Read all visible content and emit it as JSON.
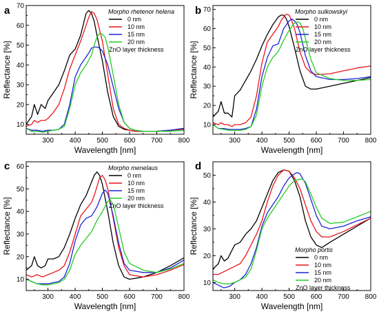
{
  "x_axis_label": "Wavelength [nm]",
  "y_axis_label": "Reflectance [%]",
  "legend_title": "ZnO layer thickness",
  "series_colors": {
    "0 nm": "#000000",
    "10 nm": "#e8141a",
    "15 nm": "#1f22d6",
    "20 nm": "#22cc22"
  },
  "chart_data": [
    {
      "panel": "a",
      "title": "Morpho rhetenor helena",
      "type": "line",
      "xlabel": "Wavelength [nm]",
      "ylabel": "Reflectance [%]",
      "xlim": [
        220,
        800
      ],
      "ylim": [
        5,
        70
      ],
      "xticks": [
        300,
        400,
        500,
        600,
        700,
        800
      ],
      "yticks": [
        10,
        20,
        30,
        40,
        50,
        60,
        70
      ],
      "legend_position": "top-right",
      "series": [
        {
          "name": "0 nm",
          "x": [
            220,
            240,
            250,
            262,
            275,
            290,
            300,
            320,
            340,
            360,
            380,
            400,
            420,
            440,
            450,
            460,
            470,
            480,
            500,
            520,
            540,
            560,
            580,
            600,
            620,
            650,
            700,
            750,
            800
          ],
          "y": [
            10,
            14,
            20,
            15,
            20,
            18,
            22,
            26,
            30,
            37,
            45,
            48,
            55,
            66,
            67.5,
            66,
            62,
            55,
            42,
            26,
            14,
            9,
            7.5,
            7,
            6.5,
            6.5,
            6.5,
            7,
            8
          ]
        },
        {
          "name": "10 nm",
          "x": [
            220,
            240,
            250,
            262,
            275,
            290,
            300,
            320,
            340,
            360,
            380,
            400,
            420,
            440,
            450,
            460,
            470,
            480,
            500,
            520,
            540,
            560,
            580,
            600,
            620,
            650,
            700,
            750,
            800
          ],
          "y": [
            9,
            10,
            12,
            11,
            12,
            12,
            13,
            16,
            20,
            28,
            38,
            45,
            52,
            60,
            64,
            67,
            66,
            63,
            52,
            35,
            18,
            10,
            8,
            7,
            6.5,
            6.5,
            6.5,
            7,
            7.5
          ]
        },
        {
          "name": "15 nm",
          "x": [
            220,
            240,
            260,
            280,
            300,
            320,
            340,
            360,
            380,
            400,
            420,
            440,
            450,
            460,
            470,
            480,
            490,
            500,
            520,
            540,
            560,
            580,
            600,
            620,
            650,
            700,
            750,
            800
          ],
          "y": [
            8,
            7,
            7,
            6.5,
            7,
            7,
            7.5,
            10,
            20,
            34,
            40,
            44,
            46,
            48.5,
            49,
            49,
            48.5,
            47,
            40,
            29,
            18,
            11,
            8,
            7,
            6.5,
            6.5,
            7,
            8
          ]
        },
        {
          "name": "20 nm",
          "x": [
            220,
            240,
            260,
            280,
            300,
            320,
            340,
            360,
            380,
            400,
            420,
            440,
            460,
            470,
            480,
            490,
            500,
            510,
            520,
            540,
            560,
            580,
            600,
            620,
            650,
            700,
            750,
            800
          ],
          "y": [
            8,
            6.5,
            6.5,
            6,
            6.5,
            7,
            7.5,
            9,
            18,
            30,
            36,
            40,
            45,
            50,
            54,
            56,
            55.5,
            54,
            49,
            35,
            20,
            11,
            8,
            7,
            6.5,
            6.5,
            6.5,
            7
          ]
        }
      ]
    },
    {
      "panel": "b",
      "title": "Morpho sulkowskyi",
      "type": "line",
      "xlabel": "Wavelength [nm]",
      "ylabel": "Reflectance [%]",
      "xlim": [
        220,
        800
      ],
      "ylim": [
        5,
        72
      ],
      "xticks": [
        300,
        400,
        500,
        600,
        700,
        800
      ],
      "yticks": [
        10,
        20,
        30,
        40,
        50,
        60,
        70
      ],
      "legend_position": "top-right",
      "series": [
        {
          "name": "0 nm",
          "x": [
            220,
            240,
            250,
            262,
            275,
            290,
            300,
            320,
            340,
            360,
            380,
            400,
            420,
            440,
            460,
            470,
            480,
            490,
            500,
            520,
            540,
            560,
            580,
            600,
            650,
            700,
            750,
            800
          ],
          "y": [
            14,
            17,
            22,
            16,
            16,
            14,
            25,
            28,
            33,
            38,
            44,
            51,
            57,
            62,
            66,
            67,
            67,
            65,
            61,
            50,
            38,
            30,
            28.5,
            28.5,
            30,
            31.5,
            33,
            34.5
          ]
        },
        {
          "name": "10 nm",
          "x": [
            220,
            240,
            250,
            262,
            275,
            290,
            300,
            320,
            340,
            360,
            380,
            400,
            420,
            440,
            460,
            470,
            480,
            490,
            500,
            510,
            520,
            540,
            560,
            580,
            600,
            650,
            700,
            750,
            800
          ],
          "y": [
            11,
            10,
            11,
            10,
            10,
            9,
            10,
            10,
            11,
            14,
            25,
            42,
            53,
            57,
            61,
            64,
            66,
            67.5,
            67,
            64,
            60,
            48,
            40,
            37,
            36,
            36.5,
            38,
            39.5,
            40.5
          ]
        },
        {
          "name": "15 nm",
          "x": [
            220,
            240,
            260,
            280,
            300,
            320,
            340,
            360,
            380,
            400,
            420,
            440,
            460,
            480,
            500,
            510,
            520,
            530,
            540,
            560,
            580,
            600,
            650,
            700,
            750,
            800
          ],
          "y": [
            10,
            8,
            8,
            7.5,
            7.5,
            7.5,
            8,
            9,
            18,
            35,
            45,
            51,
            52,
            60,
            64,
            65,
            64,
            62,
            58,
            46,
            38,
            35,
            33.5,
            33.5,
            34,
            35
          ]
        },
        {
          "name": "20 nm",
          "x": [
            220,
            240,
            260,
            280,
            300,
            320,
            340,
            360,
            380,
            400,
            420,
            440,
            460,
            480,
            500,
            520,
            530,
            540,
            550,
            560,
            580,
            600,
            650,
            700,
            750,
            800
          ],
          "y": [
            10,
            8,
            7.5,
            7,
            7,
            7,
            7.5,
            9,
            15,
            30,
            40,
            45,
            48,
            54,
            59,
            63,
            63.5,
            63,
            60,
            55,
            44,
            37,
            34,
            33,
            33,
            33.5
          ]
        }
      ]
    },
    {
      "panel": "c",
      "title": "Morpho menelaus",
      "type": "line",
      "xlabel": "Wavelength [nm]",
      "ylabel": "Reflectance [%]",
      "xlim": [
        220,
        800
      ],
      "ylim": [
        5,
        62
      ],
      "xticks": [
        300,
        400,
        500,
        600,
        700,
        800
      ],
      "yticks": [
        10,
        20,
        30,
        40,
        50,
        60
      ],
      "legend_position": "top-right",
      "series": [
        {
          "name": "0 nm",
          "x": [
            220,
            240,
            250,
            262,
            275,
            290,
            300,
            320,
            340,
            360,
            380,
            400,
            420,
            440,
            460,
            470,
            480,
            490,
            500,
            520,
            540,
            560,
            580,
            600,
            650,
            700,
            750,
            800
          ],
          "y": [
            14,
            16,
            20,
            16,
            15,
            16,
            19,
            19,
            20,
            24,
            30,
            37,
            43,
            47,
            53,
            56,
            57.5,
            56,
            52,
            40,
            26,
            16,
            11,
            10,
            11,
            13,
            16,
            19.5
          ]
        },
        {
          "name": "10 nm",
          "x": [
            220,
            240,
            260,
            280,
            300,
            320,
            340,
            360,
            380,
            400,
            420,
            440,
            460,
            470,
            480,
            490,
            500,
            510,
            520,
            540,
            560,
            580,
            600,
            650,
            700,
            750,
            800
          ],
          "y": [
            12,
            11,
            12,
            11,
            12,
            13,
            14,
            16,
            22,
            30,
            38,
            41,
            44,
            47,
            51,
            55,
            56,
            54,
            50,
            37,
            24,
            16,
            12,
            11,
            12,
            14,
            16.5
          ]
        },
        {
          "name": "15 nm",
          "x": [
            220,
            240,
            260,
            280,
            300,
            320,
            340,
            360,
            380,
            400,
            420,
            440,
            460,
            480,
            500,
            510,
            520,
            540,
            560,
            580,
            600,
            650,
            700,
            750,
            800
          ],
          "y": [
            10,
            9,
            8,
            8,
            8,
            8.5,
            9,
            11,
            17,
            27,
            34,
            37,
            38,
            42,
            48,
            49.5,
            48,
            38,
            26,
            17,
            14,
            13,
            13,
            15,
            18.5
          ]
        },
        {
          "name": "20 nm",
          "x": [
            220,
            240,
            260,
            280,
            300,
            320,
            340,
            360,
            380,
            400,
            420,
            440,
            460,
            480,
            500,
            520,
            530,
            540,
            560,
            580,
            600,
            650,
            700,
            750,
            800
          ],
          "y": [
            10,
            9,
            8,
            7.5,
            7.5,
            8,
            8.5,
            10,
            14,
            21,
            25,
            28,
            31,
            36,
            40,
            44.5,
            45,
            43,
            33,
            22,
            17,
            14,
            13,
            14.5,
            17
          ]
        }
      ]
    },
    {
      "panel": "d",
      "title": "Morpho portis",
      "type": "line",
      "xlabel": "Wavelength [nm]",
      "ylabel": "Reflectance [%]",
      "xlim": [
        220,
        800
      ],
      "ylim": [
        7,
        55
      ],
      "xticks": [
        300,
        400,
        500,
        600,
        700,
        800
      ],
      "yticks": [
        10,
        20,
        30,
        40,
        50
      ],
      "legend_position": "bottom-right",
      "series": [
        {
          "name": "0 nm",
          "x": [
            220,
            240,
            250,
            262,
            275,
            290,
            300,
            320,
            340,
            360,
            380,
            400,
            420,
            440,
            460,
            480,
            500,
            520,
            540,
            560,
            580,
            600,
            620,
            650,
            700,
            750,
            800
          ],
          "y": [
            15,
            17,
            20,
            18,
            19,
            22,
            24,
            25,
            28,
            30,
            33,
            38,
            43,
            48,
            51,
            52,
            51.5,
            48,
            42,
            33,
            27,
            24,
            23,
            25,
            28,
            31,
            34
          ]
        },
        {
          "name": "10 nm",
          "x": [
            220,
            240,
            260,
            280,
            300,
            320,
            340,
            360,
            380,
            400,
            420,
            440,
            460,
            480,
            500,
            520,
            540,
            560,
            580,
            600,
            620,
            650,
            700,
            750,
            800
          ],
          "y": [
            13,
            13,
            14,
            15,
            16,
            17,
            20,
            24,
            28,
            33,
            40,
            46,
            50,
            52,
            51.5,
            49,
            45,
            39,
            33,
            29,
            27,
            27,
            29,
            31.5,
            34
          ]
        },
        {
          "name": "15 nm",
          "x": [
            220,
            240,
            260,
            280,
            300,
            320,
            340,
            360,
            380,
            400,
            420,
            440,
            460,
            480,
            500,
            520,
            530,
            540,
            560,
            580,
            600,
            620,
            650,
            700,
            750,
            800
          ],
          "y": [
            10,
            9,
            8,
            8.5,
            10,
            11,
            13,
            17,
            23,
            31,
            36,
            39,
            42,
            46,
            49,
            50.5,
            51,
            50.5,
            47,
            41,
            35,
            31,
            30,
            31,
            33,
            34.5
          ]
        },
        {
          "name": "20 nm",
          "x": [
            220,
            240,
            260,
            280,
            300,
            320,
            340,
            360,
            380,
            400,
            420,
            440,
            460,
            480,
            500,
            520,
            540,
            550,
            560,
            580,
            600,
            620,
            650,
            700,
            750,
            800
          ],
          "y": [
            11,
            10,
            9.5,
            9.5,
            10,
            11,
            12,
            15,
            22,
            30,
            34,
            37,
            40,
            43,
            46,
            48,
            48.5,
            48.5,
            47.5,
            43,
            38,
            34,
            32,
            32.5,
            34.5,
            36.5
          ]
        }
      ]
    }
  ]
}
